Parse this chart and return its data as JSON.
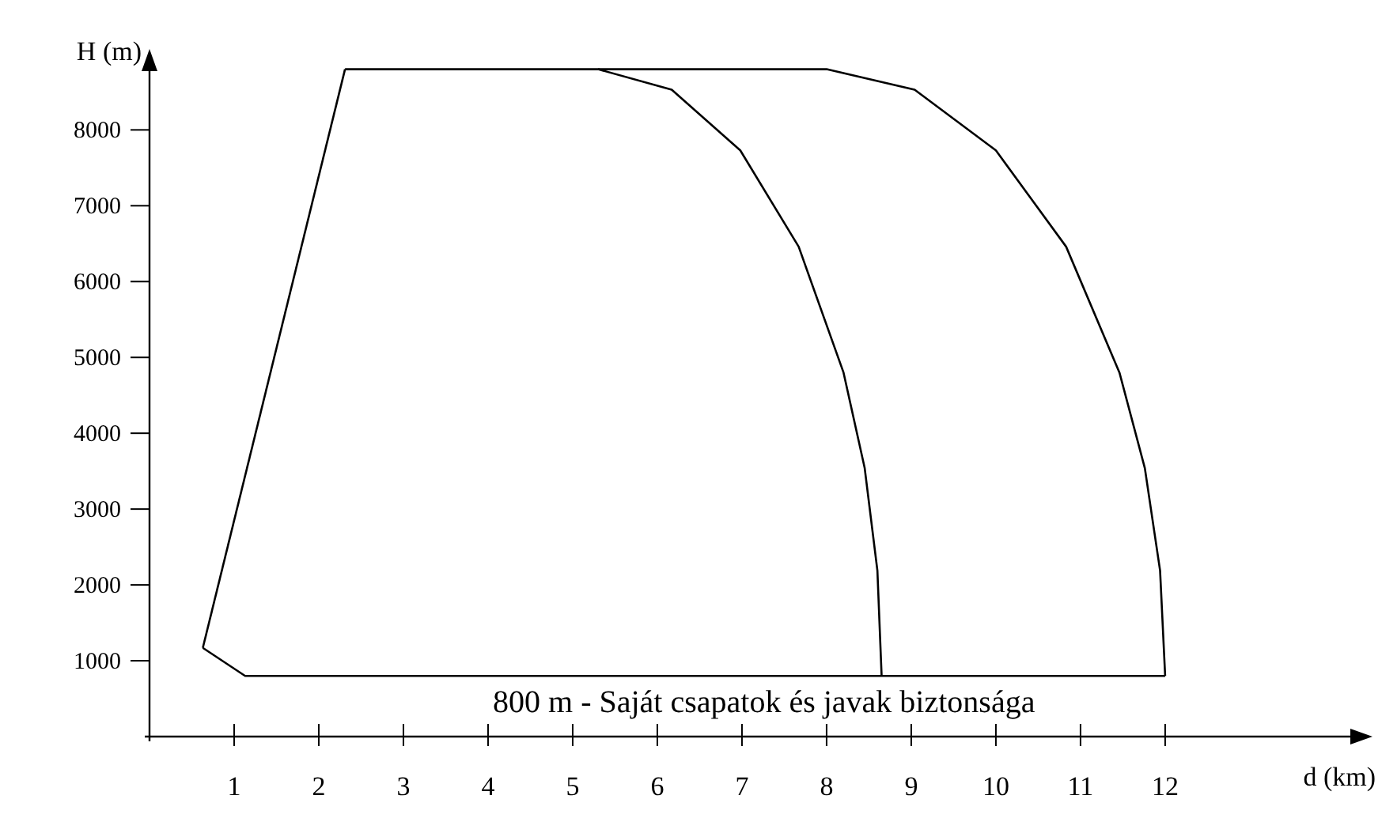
{
  "chart_data": {
    "type": "line",
    "xlabel": "d (km)",
    "ylabel": "H (m)",
    "xlim": [
      0,
      14.3
    ],
    "ylim": [
      0,
      8900
    ],
    "xticks": [
      1,
      2,
      3,
      4,
      5,
      6,
      7,
      8,
      9,
      10,
      11,
      12
    ],
    "yticks": [
      1000,
      2000,
      3000,
      4000,
      5000,
      6000,
      7000,
      8000
    ],
    "grid": false,
    "series": [
      {
        "color": "#000000",
        "x": [
          0.63,
          2.31
        ],
        "values": [
          1170,
          8800
        ]
      },
      {
        "color": "#000000",
        "x": [
          0.63,
          1.13,
          12
        ],
        "values": [
          1170,
          800,
          800
        ]
      },
      {
        "color": "#000000",
        "x": [
          2.31,
          8,
          9.04,
          10,
          10.83,
          11.46,
          11.76,
          11.94,
          12
        ],
        "values": [
          8800,
          8800,
          8530,
          7730,
          6460,
          4800,
          3540,
          2190,
          800
        ]
      },
      {
        "color": "#000000",
        "x": [
          5.3,
          6.17,
          6.98,
          7.67,
          8.2,
          8.45,
          8.6,
          8.65
        ],
        "values": [
          8800,
          8530,
          7730,
          6460,
          4800,
          3540,
          2190,
          800
        ]
      }
    ],
    "annotations": [
      {
        "text": "800 m - Saját csapatok és javak biztonsága",
        "x": 7.26,
        "y": 800
      }
    ]
  }
}
